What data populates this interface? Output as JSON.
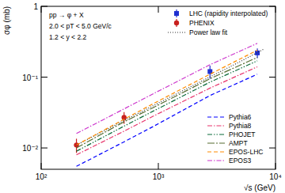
{
  "chart_data": {
    "type": "line",
    "x_label": "√s (GeV)",
    "y_label": "σφ (mb)",
    "annotations": [
      "pp → φ + X",
      "2.0 < pT < 5.0 GeV/c",
      "1.2 < y < 2.2"
    ],
    "log": true,
    "xlim": [
      100,
      10000
    ],
    "ylim": [
      0.005,
      1
    ],
    "xticks": [
      {
        "value": 100,
        "label": "10²"
      },
      {
        "value": 1000,
        "label": "10³"
      },
      {
        "value": 10000,
        "label": "10⁴"
      }
    ],
    "yticks": [
      {
        "value": 0.01,
        "label": "10⁻²"
      },
      {
        "value": 0.1,
        "label": "10⁻¹"
      },
      1
    ],
    "series": [
      {
        "name": "LHC (rapidity interpolated)",
        "type": "scatter",
        "marker": "square",
        "color": "#1f2fd0",
        "x": [
          2760,
          7000
        ],
        "values": [
          0.12,
          0.22
        ],
        "errors": [
          0.025,
          0.035
        ]
      },
      {
        "name": "PHENIX",
        "type": "scatter",
        "marker": "circle",
        "color": "#c8201e",
        "x": [
          200,
          510
        ],
        "values": [
          0.011,
          0.027
        ],
        "errors": [
          0.0025,
          0.005
        ]
      },
      {
        "name": "Power law fit",
        "type": "line",
        "line_style": "dotted",
        "color": "#333333",
        "x": [
          200,
          500,
          1000,
          2000,
          5000,
          8000
        ],
        "values": [
          0.011,
          0.024,
          0.043,
          0.077,
          0.166,
          0.25
        ]
      },
      {
        "name": "Pythia6",
        "type": "line",
        "line_style": "dashed",
        "color": "#0000ff",
        "x": [
          200,
          500,
          900,
          2760,
          7000
        ],
        "values": [
          0.0055,
          0.012,
          0.02,
          0.055,
          0.11
        ]
      },
      {
        "name": "Pythia8",
        "type": "line",
        "line_style": "dash-dot",
        "color": "#e8336b",
        "x": [
          200,
          500,
          900,
          2760,
          7000
        ],
        "values": [
          0.008,
          0.017,
          0.028,
          0.07,
          0.14
        ]
      },
      {
        "name": "PHOJET",
        "type": "line",
        "line_style": "dash-dot-dot",
        "color": "#0b6b3a",
        "x": [
          200,
          500,
          900,
          2760,
          7000
        ],
        "values": [
          0.009,
          0.02,
          0.033,
          0.085,
          0.17
        ]
      },
      {
        "name": "AMPT",
        "type": "line",
        "line_style": "long-dash-dot",
        "color": "#556b2f",
        "x": [
          200,
          500,
          900,
          2760,
          7000
        ],
        "values": [
          0.01,
          0.023,
          0.037,
          0.095,
          0.19
        ]
      },
      {
        "name": "EPOS-LHC",
        "type": "line",
        "line_style": "dashed",
        "color": "#ff8c00",
        "x": [
          200,
          500,
          900,
          2760,
          7000
        ],
        "values": [
          0.011,
          0.025,
          0.042,
          0.11,
          0.24
        ]
      },
      {
        "name": "EPOS3",
        "type": "line",
        "line_style": "dash-dot",
        "color": "#cc33cc",
        "x": [
          200,
          500,
          900,
          2760,
          7000
        ],
        "values": [
          0.016,
          0.035,
          0.058,
          0.15,
          0.3
        ]
      }
    ]
  }
}
